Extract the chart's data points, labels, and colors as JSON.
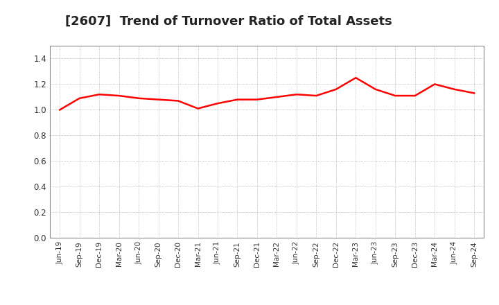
{
  "title": "[2607]  Trend of Turnover Ratio of Total Assets",
  "title_fontsize": 13,
  "line_color": "#FF0000",
  "line_width": 1.8,
  "background_color": "#FFFFFF",
  "grid_color": "#AAAAAA",
  "ylim": [
    0.0,
    1.5
  ],
  "yticks": [
    0.0,
    0.2,
    0.4,
    0.6,
    0.8,
    1.0,
    1.2,
    1.4
  ],
  "labels": [
    "Jun-19",
    "Sep-19",
    "Dec-19",
    "Mar-20",
    "Jun-20",
    "Sep-20",
    "Dec-20",
    "Mar-21",
    "Jun-21",
    "Sep-21",
    "Dec-21",
    "Mar-22",
    "Jun-22",
    "Sep-22",
    "Dec-22",
    "Mar-23",
    "Jun-23",
    "Sep-23",
    "Dec-23",
    "Mar-24",
    "Jun-24",
    "Sep-24"
  ],
  "values": [
    1.0,
    1.09,
    1.12,
    1.11,
    1.09,
    1.08,
    1.07,
    1.01,
    1.05,
    1.08,
    1.08,
    1.1,
    1.12,
    1.11,
    1.16,
    1.25,
    1.16,
    1.11,
    1.11,
    1.2,
    1.16,
    1.13
  ]
}
